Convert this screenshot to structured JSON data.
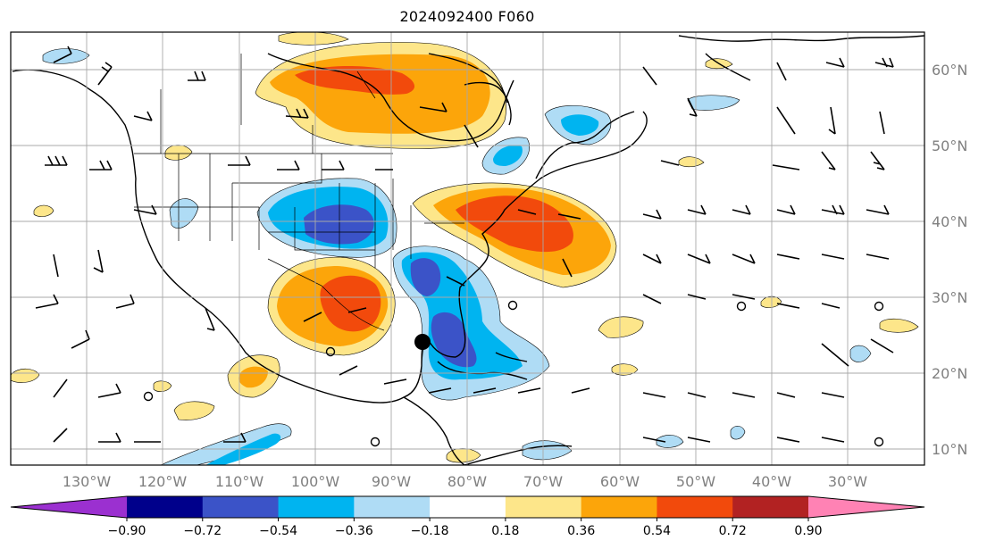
{
  "title": "2024092400 F060",
  "latitude_labels": [
    "60°N",
    "50°N",
    "40°N",
    "30°N",
    "20°N",
    "10°N"
  ],
  "longitude_labels": [
    "130°W",
    "120°W",
    "110°W",
    "100°W",
    "90°W",
    "80°W",
    "70°W",
    "60°W",
    "50°W",
    "40°W",
    "30°W"
  ],
  "colorbar": {
    "tick_labels": [
      "−0.90",
      "−0.72",
      "−0.54",
      "−0.36",
      "−0.18",
      "0.18",
      "0.36",
      "0.54",
      "0.72",
      "0.90"
    ],
    "colors": [
      "#9b30d0",
      "#00008b",
      "#3b53c8",
      "#00b4f0",
      "#afdcf5",
      "#ffffff",
      "#fde68a",
      "#fca50a",
      "#f24a0c",
      "#b22222",
      "#ff82b4"
    ]
  },
  "map_features": {
    "marker": "storm-center-dot",
    "positive_anomalies": [
      "canada-west",
      "northeast-us",
      "texas",
      "central-america-pockets"
    ],
    "negative_anomalies": [
      "central-plains",
      "southeast-gulf",
      "newfoundland",
      "eastern-pacific-itcz"
    ]
  }
}
